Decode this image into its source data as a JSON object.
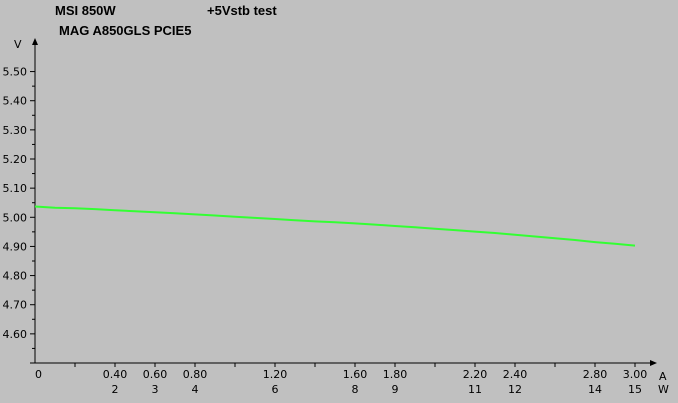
{
  "header": {
    "title_line1": "MSI 850W",
    "title_line2": "MAG A850GLS PCIE5",
    "test_name": "+5Vstb test"
  },
  "chart_data": {
    "type": "line",
    "title": "+5Vstb test",
    "ylabel": "V",
    "xlabel": "A",
    "x2label": "W",
    "ylim": [
      4.5,
      5.55
    ],
    "xlim": [
      0,
      3.0
    ],
    "yticks": [
      "4.60",
      "4.70",
      "4.80",
      "4.90",
      "5.00",
      "5.10",
      "5.20",
      "5.30",
      "5.40",
      "5.50"
    ],
    "xticks": [
      "0",
      "0.40",
      "0.60",
      "0.80",
      "1.20",
      "1.60",
      "1.80",
      "2.20",
      "2.40",
      "2.80",
      "3.00"
    ],
    "x_ticks_values": [
      0,
      0.4,
      0.6,
      0.8,
      1.2,
      1.6,
      1.8,
      2.2,
      2.4,
      2.8,
      3.0
    ],
    "x2ticks": [
      "2",
      "3",
      "4",
      "6",
      "8",
      "9",
      "11",
      "12",
      "14",
      "15"
    ],
    "x2_tick_positions": [
      0.4,
      0.6,
      0.8,
      1.2,
      1.6,
      1.8,
      2.2,
      2.4,
      2.8,
      3.0
    ],
    "grid": false,
    "series": [
      {
        "color": "#33ff33",
        "x": [
          0.0,
          0.1,
          0.2,
          0.3,
          0.4,
          0.5,
          0.6,
          0.7,
          0.8,
          0.9,
          1.0,
          1.1,
          1.2,
          1.3,
          1.4,
          1.5,
          1.6,
          1.7,
          1.8,
          1.9,
          2.0,
          2.1,
          2.2,
          2.3,
          2.4,
          2.5,
          2.6,
          2.7,
          2.8,
          2.9,
          3.0
        ],
        "values": [
          5.037,
          5.033,
          5.031,
          5.028,
          5.024,
          5.021,
          5.017,
          5.014,
          5.01,
          5.006,
          5.002,
          4.998,
          4.994,
          4.99,
          4.986,
          4.983,
          4.979,
          4.975,
          4.97,
          4.966,
          4.961,
          4.956,
          4.951,
          4.946,
          4.94,
          4.934,
          4.928,
          4.922,
          4.915,
          4.909,
          4.903
        ]
      }
    ]
  }
}
